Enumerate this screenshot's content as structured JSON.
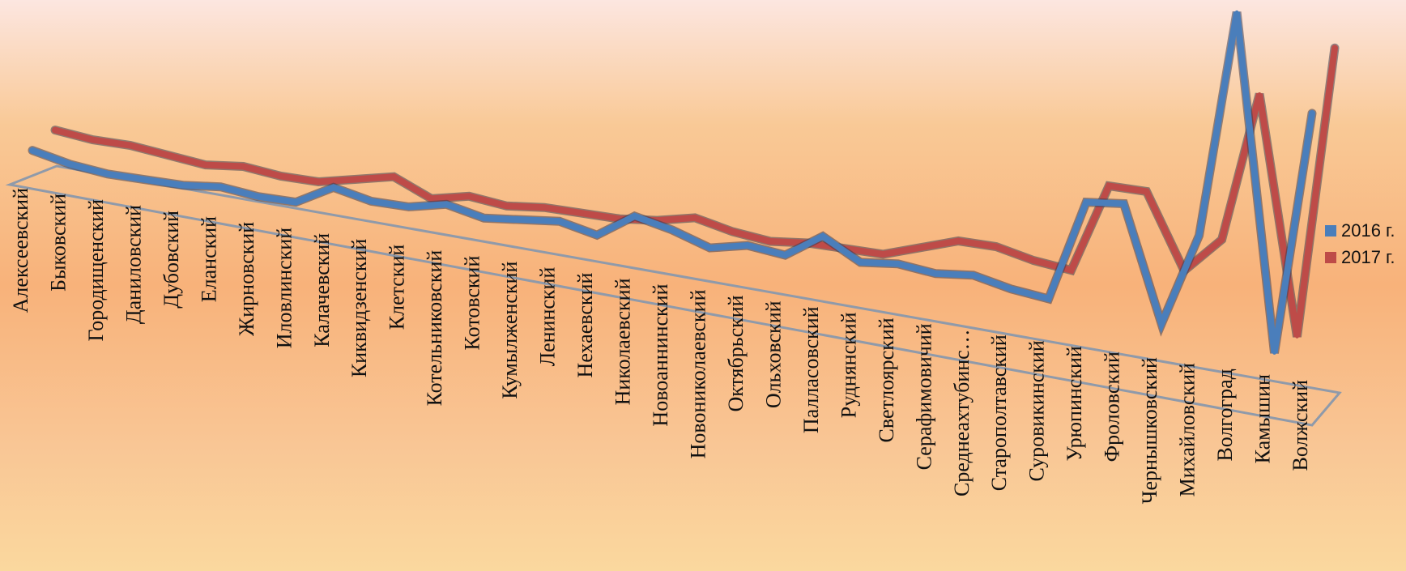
{
  "chart_data": {
    "type": "line",
    "style": "3d",
    "categories": [
      "Алексеевский",
      "Быковский",
      "Городищенский",
      "Даниловский",
      "Дубовский",
      "Еланский",
      "Жирновский",
      "Иловлинский",
      "Калачевский",
      "Киквидзенский",
      "Клетский",
      "Котельниковский",
      "Котовский",
      "Кумылженский",
      "Ленинский",
      "Нехаевский",
      "Николаевский",
      "Новоаннинский",
      "Новониколаевский",
      "Октябрьский",
      "Ольховский",
      "Палласовский",
      "Руднянский",
      "Светлоярский",
      "Серафимовичий",
      "Среднеахтубинс…",
      "Старополтавский",
      "Суровикинский",
      "Урюпинский",
      "Фроловский",
      "Чернышковский",
      "Михайловский",
      "Волгоград",
      "Камышин",
      "Волжский"
    ],
    "series": [
      {
        "name": "2016 г.",
        "color": "#4a7ebb",
        "values": [
          3,
          2,
          1.5,
          1.5,
          1.5,
          2,
          1.5,
          1.5,
          4,
          3,
          3,
          4,
          3,
          3.5,
          4,
          3,
          6,
          5,
          3.5,
          4.5,
          4,
          7,
          4.5,
          5,
          4.5,
          5,
          4,
          3.5,
          16,
          16.5,
          2.5,
          14,
          42,
          1,
          31
        ]
      },
      {
        "name": "2017 г.",
        "color": "#be4b48",
        "values": [
          4.5,
          4,
          4,
          3.5,
          3,
          3.5,
          3,
          3,
          4,
          5,
          3,
          4,
          3.5,
          4,
          4,
          4,
          4.5,
          5.5,
          4.5,
          4,
          4.5,
          4.5,
          4.5,
          6,
          7.5,
          7.5,
          6.5,
          6,
          17,
          17,
          8,
          12.5,
          31,
          2,
          38
        ]
      }
    ],
    "legend_position": "right"
  }
}
